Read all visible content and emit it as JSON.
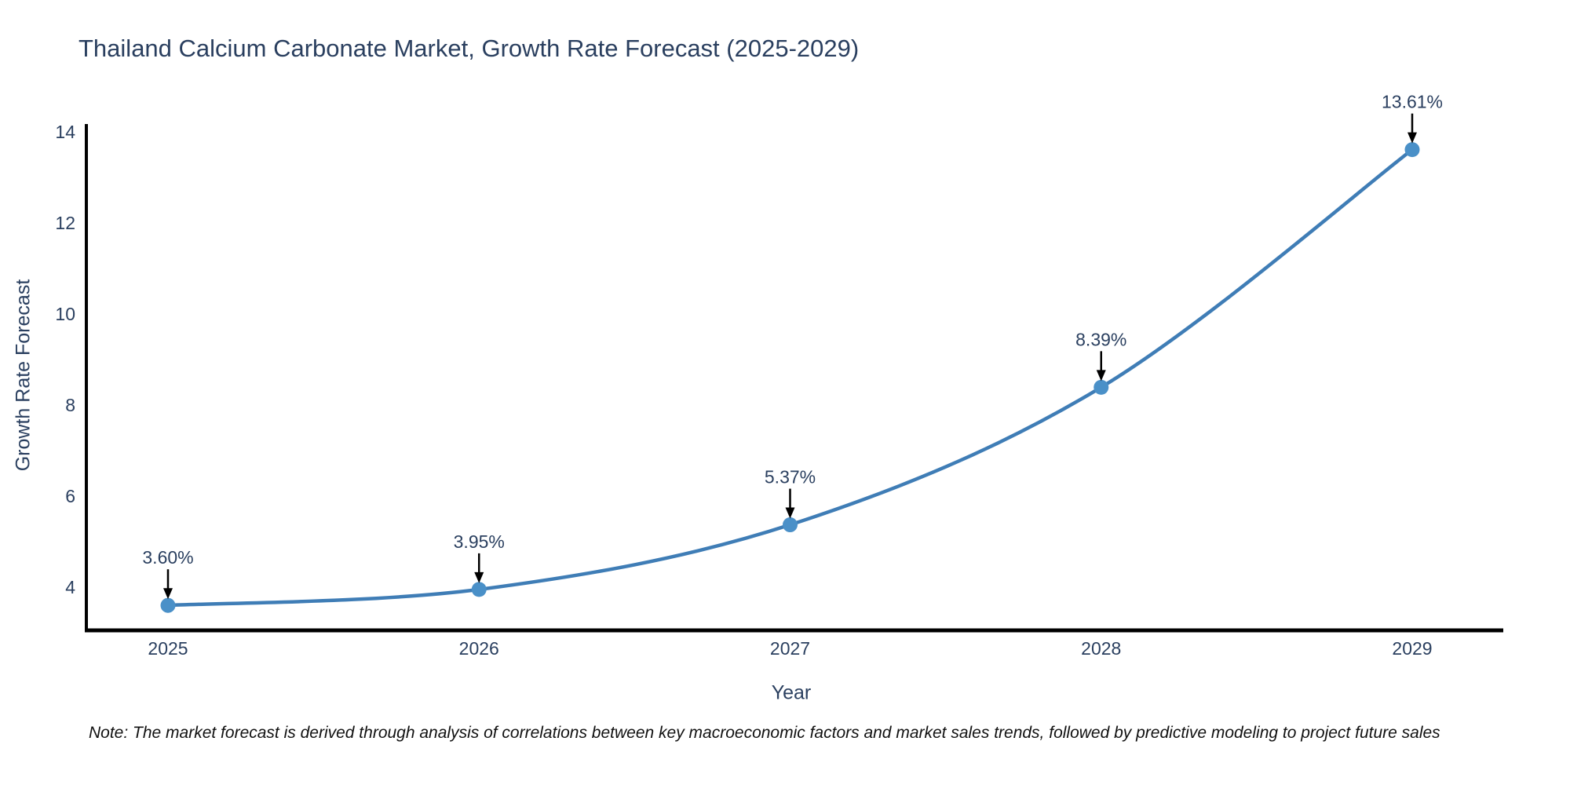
{
  "title": "Thailand Calcium Carbonate Market, Growth Rate Forecast (2025-2029)",
  "note": "Note: The market forecast is derived through analysis of correlations between key macroeconomic factors and market sales trends, followed by predictive modeling to project future sales",
  "chart_data": {
    "type": "line",
    "title": "Thailand Calcium Carbonate Market, Growth Rate Forecast (2025-2029)",
    "xlabel": "Year",
    "ylabel": "Growth Rate Forecast",
    "categories": [
      "2025",
      "2026",
      "2027",
      "2028",
      "2029"
    ],
    "x": [
      2025,
      2026,
      2027,
      2028,
      2029
    ],
    "series": [
      {
        "name": "Growth Rate Forecast",
        "values": [
          3.6,
          3.95,
          5.37,
          8.39,
          13.61
        ]
      }
    ],
    "point_labels": [
      "3.60%",
      "3.95%",
      "5.37%",
      "8.39%",
      "13.61%"
    ],
    "yticks": [
      4,
      6,
      8,
      10,
      12,
      14
    ],
    "ylim": [
      3.0,
      14.2
    ],
    "grid": false,
    "legend": false,
    "line_smoothing": "spline",
    "colors": {
      "line": "#3f7db6",
      "marker": "#4a90c8",
      "axis": "#000000",
      "tick_text": "#2a3f5f",
      "annotation_text": "#2a3f5f",
      "arrow": "#000000",
      "background": "#ffffff"
    }
  }
}
